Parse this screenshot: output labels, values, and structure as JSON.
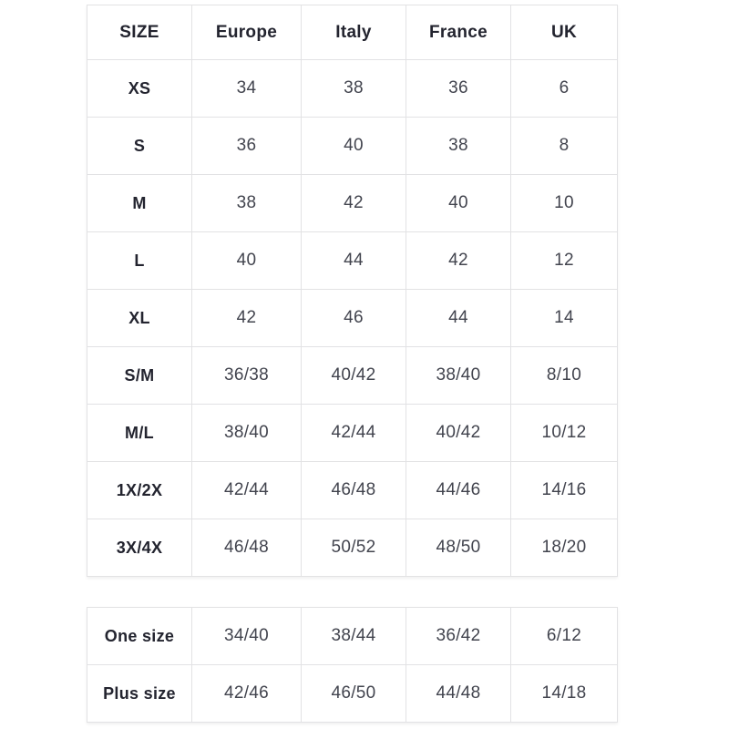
{
  "colors": {
    "header_text": "#23242f",
    "value_text": "#42444e",
    "border": "#e2e2e4",
    "background": "#ffffff"
  },
  "size_chart": {
    "main_table": {
      "headers": [
        "SIZE",
        "Europe",
        "Italy",
        "France",
        "UK"
      ],
      "rows": [
        {
          "label": "XS",
          "values": [
            "34",
            "38",
            "36",
            "6"
          ]
        },
        {
          "label": "S",
          "values": [
            "36",
            "40",
            "38",
            "8"
          ]
        },
        {
          "label": "M",
          "values": [
            "38",
            "42",
            "40",
            "10"
          ]
        },
        {
          "label": "L",
          "values": [
            "40",
            "44",
            "42",
            "12"
          ]
        },
        {
          "label": "XL",
          "values": [
            "42",
            "46",
            "44",
            "14"
          ]
        },
        {
          "label": "S/M",
          "values": [
            "36/38",
            "40/42",
            "38/40",
            "8/10"
          ]
        },
        {
          "label": "M/L",
          "values": [
            "38/40",
            "42/44",
            "40/42",
            "10/12"
          ]
        },
        {
          "label": "1X/2X",
          "values": [
            "42/44",
            "46/48",
            "44/46",
            "14/16"
          ]
        },
        {
          "label": "3X/4X",
          "values": [
            "46/48",
            "50/52",
            "48/50",
            "18/20"
          ]
        }
      ]
    },
    "special_table": {
      "rows": [
        {
          "label": "One size",
          "values": [
            "34/40",
            "38/44",
            "36/42",
            "6/12"
          ]
        },
        {
          "label": "Plus size",
          "values": [
            "42/46",
            "46/50",
            "44/48",
            "14/18"
          ]
        }
      ]
    }
  }
}
